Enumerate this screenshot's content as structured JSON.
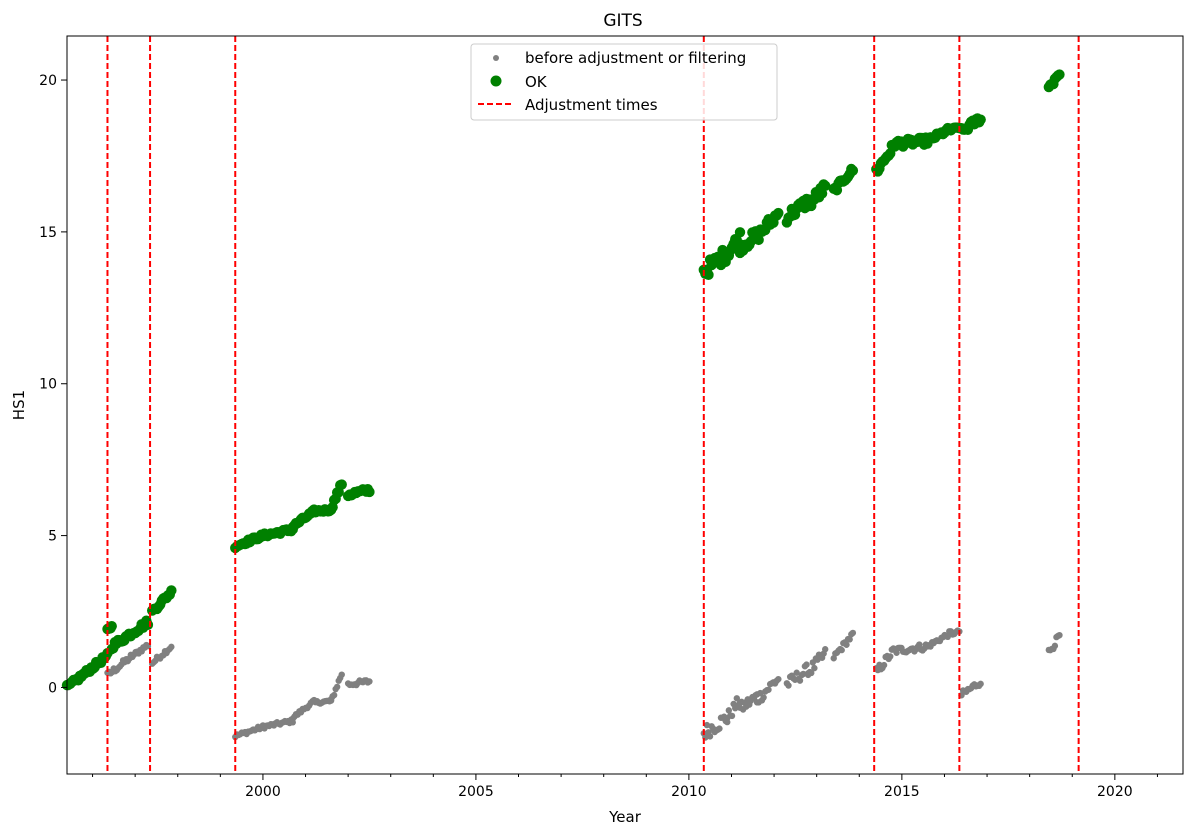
{
  "chart_data": {
    "type": "scatter",
    "title": "GITS",
    "xlabel": "Year",
    "ylabel": "HS1",
    "xlim": [
      1995.4,
      2021.6
    ],
    "ylim": [
      -2.85,
      21.45
    ],
    "xticks": [
      2000,
      2005,
      2010,
      2015,
      2020
    ],
    "yticks": [
      0,
      5,
      10,
      15,
      20
    ],
    "grid": false,
    "legend_position": "top-center",
    "colors": {
      "before": "#808080",
      "ok": "#008000",
      "adjust": "#ff0000"
    },
    "series": [
      {
        "name": "before adjustment or filtering",
        "marker": "small-dot",
        "segments": [
          {
            "x": [
              1995.4,
              1996.35
            ],
            "y": [
              0.0,
              1.05
            ],
            "jitter": 0.08
          },
          {
            "x": [
              1996.35,
              1996.9
            ],
            "y": [
              0.4,
              1.0
            ],
            "jitter": 0.1
          },
          {
            "x": [
              1996.9,
              1997.3
            ],
            "y": [
              1.0,
              1.4
            ],
            "jitter": 0.08
          },
          {
            "x": [
              1997.4,
              1997.85
            ],
            "y": [
              0.8,
              1.35
            ],
            "jitter": 0.08
          },
          {
            "x": [
              1999.35,
              2000.0
            ],
            "y": [
              -1.6,
              -1.3
            ],
            "jitter": 0.06
          },
          {
            "x": [
              2000.0,
              2000.7
            ],
            "y": [
              -1.3,
              -1.1
            ],
            "jitter": 0.06
          },
          {
            "x": [
              2000.7,
              2001.2
            ],
            "y": [
              -1.0,
              -0.45
            ],
            "jitter": 0.06
          },
          {
            "x": [
              2001.2,
              2001.6
            ],
            "y": [
              -0.5,
              -0.45
            ],
            "jitter": 0.05
          },
          {
            "x": [
              2001.6,
              2001.85
            ],
            "y": [
              -0.45,
              0.45
            ],
            "jitter": 0.08
          },
          {
            "x": [
              2002.0,
              2002.5
            ],
            "y": [
              0.1,
              0.2
            ],
            "jitter": 0.08
          },
          {
            "x": [
              2010.35,
              2010.9
            ],
            "y": [
              -1.5,
              -1.0
            ],
            "jitter": 0.25
          },
          {
            "x": [
              2010.9,
              2011.2
            ],
            "y": [
              -1.0,
              -0.4
            ],
            "jitter": 0.2
          },
          {
            "x": [
              2011.2,
              2011.6
            ],
            "y": [
              -0.7,
              -0.3
            ],
            "jitter": 0.2
          },
          {
            "x": [
              2011.6,
              2012.1
            ],
            "y": [
              -0.4,
              0.3
            ],
            "jitter": 0.2
          },
          {
            "x": [
              2012.3,
              2012.8
            ],
            "y": [
              0.1,
              0.6
            ],
            "jitter": 0.2
          },
          {
            "x": [
              2012.8,
              2013.2
            ],
            "y": [
              0.5,
              1.1
            ],
            "jitter": 0.2
          },
          {
            "x": [
              2013.4,
              2013.85
            ],
            "y": [
              1.0,
              1.75
            ],
            "jitter": 0.1
          },
          {
            "x": [
              2014.4,
              2014.8
            ],
            "y": [
              0.5,
              1.2
            ],
            "jitter": 0.15
          },
          {
            "x": [
              2014.8,
              2015.6
            ],
            "y": [
              1.2,
              1.35
            ],
            "jitter": 0.12
          },
          {
            "x": [
              2015.6,
              2016.15
            ],
            "y": [
              1.35,
              1.8
            ],
            "jitter": 0.08
          },
          {
            "x": [
              2016.15,
              2016.35
            ],
            "y": [
              1.75,
              1.85
            ],
            "jitter": 0.05
          },
          {
            "x": [
              2016.4,
              2016.85
            ],
            "y": [
              -0.25,
              0.2
            ],
            "jitter": 0.12
          },
          {
            "x": [
              2018.45,
              2018.7
            ],
            "y": [
              1.15,
              1.7
            ],
            "jitter": 0.12
          }
        ]
      },
      {
        "name": "OK",
        "marker": "dot",
        "segments": [
          {
            "x": [
              1995.4,
              1996.35
            ],
            "y": [
              0.0,
              1.05
            ],
            "jitter": 0.08
          },
          {
            "x": [
              1996.35,
              1996.45
            ],
            "y": [
              1.9,
              2.0
            ],
            "jitter": 0.04
          },
          {
            "x": [
              1996.45,
              1997.3
            ],
            "y": [
              1.35,
              2.15
            ],
            "jitter": 0.1
          },
          {
            "x": [
              1997.4,
              1997.85
            ],
            "y": [
              2.5,
              3.15
            ],
            "jitter": 0.08
          },
          {
            "x": [
              1999.35,
              2000.0
            ],
            "y": [
              4.65,
              5.0
            ],
            "jitter": 0.06
          },
          {
            "x": [
              2000.0,
              2000.7
            ],
            "y": [
              5.0,
              5.2
            ],
            "jitter": 0.06
          },
          {
            "x": [
              2000.7,
              2001.2
            ],
            "y": [
              5.3,
              5.8
            ],
            "jitter": 0.06
          },
          {
            "x": [
              2001.2,
              2001.6
            ],
            "y": [
              5.8,
              5.85
            ],
            "jitter": 0.05
          },
          {
            "x": [
              2001.6,
              2001.85
            ],
            "y": [
              5.9,
              6.7
            ],
            "jitter": 0.08
          },
          {
            "x": [
              2002.0,
              2002.5
            ],
            "y": [
              6.35,
              6.5
            ],
            "jitter": 0.08
          },
          {
            "x": [
              2010.35,
              2010.9
            ],
            "y": [
              13.7,
              14.3
            ],
            "jitter": 0.25
          },
          {
            "x": [
              2010.9,
              2011.2
            ],
            "y": [
              14.3,
              14.85
            ],
            "jitter": 0.2
          },
          {
            "x": [
              2011.2,
              2011.6
            ],
            "y": [
              14.5,
              14.9
            ],
            "jitter": 0.2
          },
          {
            "x": [
              2011.6,
              2012.1
            ],
            "y": [
              14.85,
              15.6
            ],
            "jitter": 0.2
          },
          {
            "x": [
              2012.3,
              2012.8
            ],
            "y": [
              15.5,
              16.0
            ],
            "jitter": 0.2
          },
          {
            "x": [
              2012.8,
              2013.2
            ],
            "y": [
              15.9,
              16.45
            ],
            "jitter": 0.2
          },
          {
            "x": [
              2013.4,
              2013.85
            ],
            "y": [
              16.35,
              17.05
            ],
            "jitter": 0.1
          },
          {
            "x": [
              2014.4,
              2014.8
            ],
            "y": [
              17.0,
              17.8
            ],
            "jitter": 0.15
          },
          {
            "x": [
              2014.8,
              2015.6
            ],
            "y": [
              17.9,
              18.0
            ],
            "jitter": 0.12
          },
          {
            "x": [
              2015.6,
              2016.15
            ],
            "y": [
              18.0,
              18.4
            ],
            "jitter": 0.08
          },
          {
            "x": [
              2016.15,
              2016.35
            ],
            "y": [
              18.35,
              18.45
            ],
            "jitter": 0.05
          },
          {
            "x": [
              2016.4,
              2016.85
            ],
            "y": [
              18.3,
              18.75
            ],
            "jitter": 0.12
          },
          {
            "x": [
              2018.45,
              2018.7
            ],
            "y": [
              19.75,
              20.25
            ],
            "jitter": 0.12
          }
        ]
      },
      {
        "name": "Adjustment times",
        "line_style": "dashed",
        "x": [
          1996.35,
          1997.35,
          1999.35,
          2010.35,
          2014.35,
          2016.35,
          2019.15
        ]
      }
    ]
  }
}
